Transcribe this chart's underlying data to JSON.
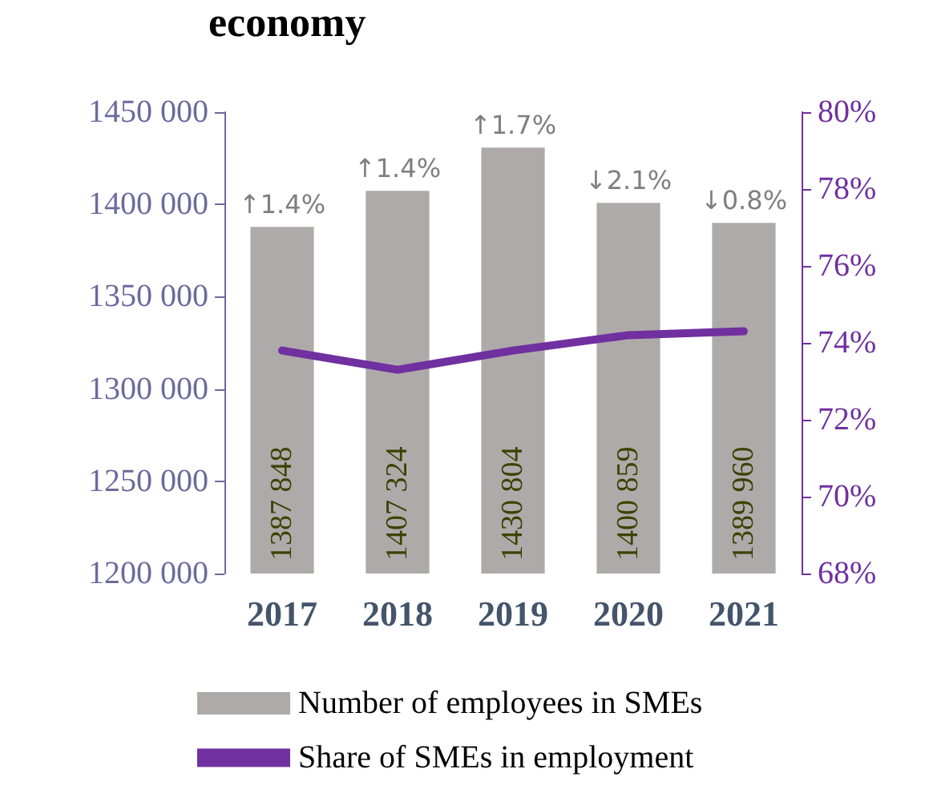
{
  "chart_data": {
    "type": "bar",
    "title": "economy",
    "categories": [
      "2017",
      "2018",
      "2019",
      "2020",
      "2021"
    ],
    "series": [
      {
        "name": "Number of employees in SMEs",
        "color": "#aeaaaa",
        "values": [
          1387848,
          1407324,
          1430804,
          1400859,
          1389960
        ],
        "value_labels": [
          "1387 848",
          "1407 324",
          "1430 804",
          "1400 859",
          "1389 960"
        ]
      },
      {
        "name": "Share of SMEs in employment",
        "type": "line",
        "axis": "y2",
        "color": "#7030a0",
        "values": [
          73.8,
          73.3,
          73.8,
          74.2,
          74.3
        ]
      }
    ],
    "ylim": [
      1200000,
      1450000
    ],
    "yticks": [
      {
        "value": 1200000,
        "label": "1200 000"
      },
      {
        "value": 1250000,
        "label": "1250 000"
      },
      {
        "value": 1300000,
        "label": "1300 000"
      },
      {
        "value": 1350000,
        "label": "1350 000"
      },
      {
        "value": 1400000,
        "label": "1400 000"
      },
      {
        "value": 1450000,
        "label": "1450 000"
      }
    ],
    "y2lim": [
      68,
      80
    ],
    "y2ticks": [
      {
        "value": 68,
        "label": "68%"
      },
      {
        "value": 70,
        "label": "70%"
      },
      {
        "value": 72,
        "label": "72%"
      },
      {
        "value": 74,
        "label": "74%"
      },
      {
        "value": 76,
        "label": "76%"
      },
      {
        "value": 78,
        "label": "78%"
      },
      {
        "value": 80,
        "label": "80%"
      }
    ],
    "annotations": [
      {
        "text": "↑1.4%",
        "x": "2017",
        "y": 1387848
      },
      {
        "text": "↑1.4%",
        "x": "2018",
        "y": 1407324
      },
      {
        "text": "↑1.7%",
        "x": "2019",
        "y": 1430804
      },
      {
        "text": "↓2.1%",
        "x": "2020",
        "y": 1400859
      },
      {
        "text": "↓0.8%",
        "x": "2021",
        "y": 1389960
      }
    ],
    "grid": false,
    "legend": "bottom",
    "marker": "none",
    "line_style": "solid"
  }
}
